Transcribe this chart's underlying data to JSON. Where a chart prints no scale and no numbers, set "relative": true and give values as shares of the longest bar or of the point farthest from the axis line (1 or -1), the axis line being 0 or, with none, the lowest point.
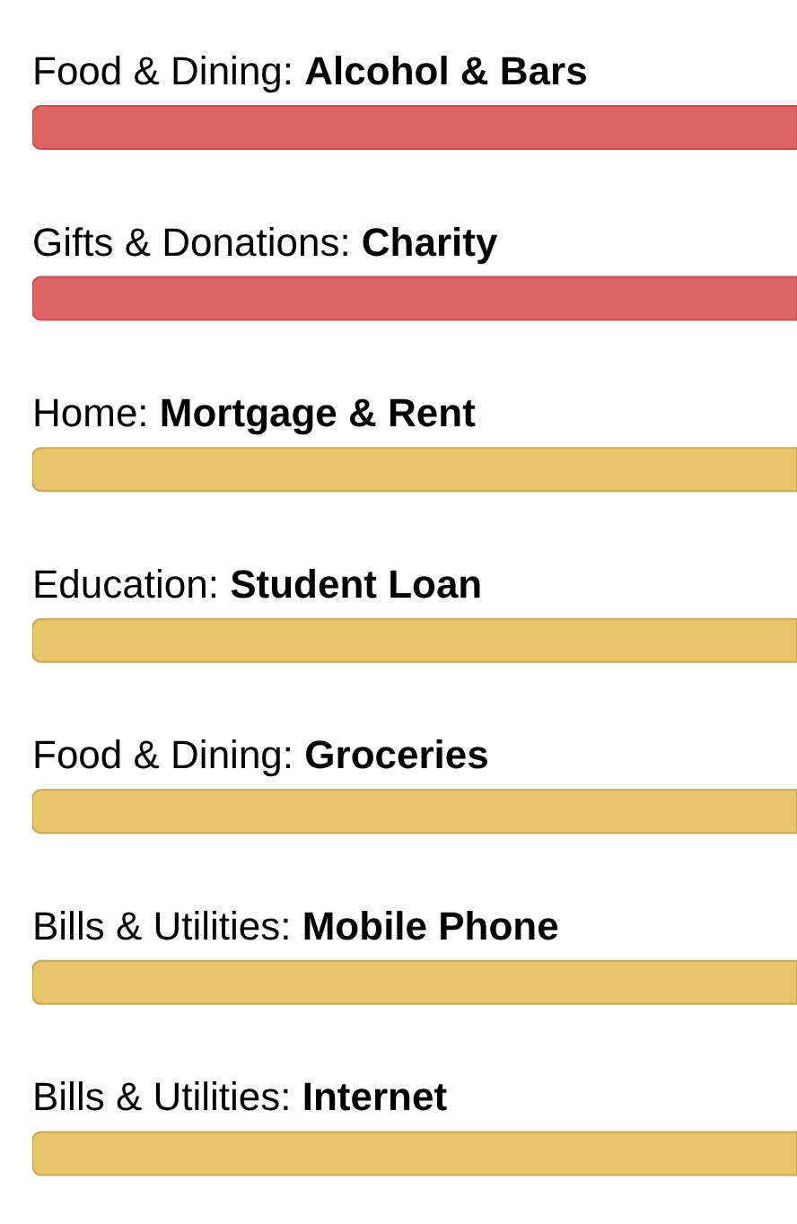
{
  "chart_data": {
    "type": "bar",
    "orientation": "horizontal",
    "relative": true,
    "categories": [
      "Food & Dining: Alcohol & Bars",
      "Gifts & Donations: Charity",
      "Home: Mortgage & Rent",
      "Education: Student Loan",
      "Food & Dining: Groceries",
      "Bills & Utilities: Mobile Phone",
      "Bills & Utilities: Internet"
    ],
    "values": [
      1,
      1,
      1,
      1,
      1,
      1,
      1
    ],
    "colors": [
      "#e06464",
      "#e06464",
      "#e8c46a",
      "#e8c46a",
      "#e8c46a",
      "#e8c46a",
      "#e8c46a"
    ]
  }
}
